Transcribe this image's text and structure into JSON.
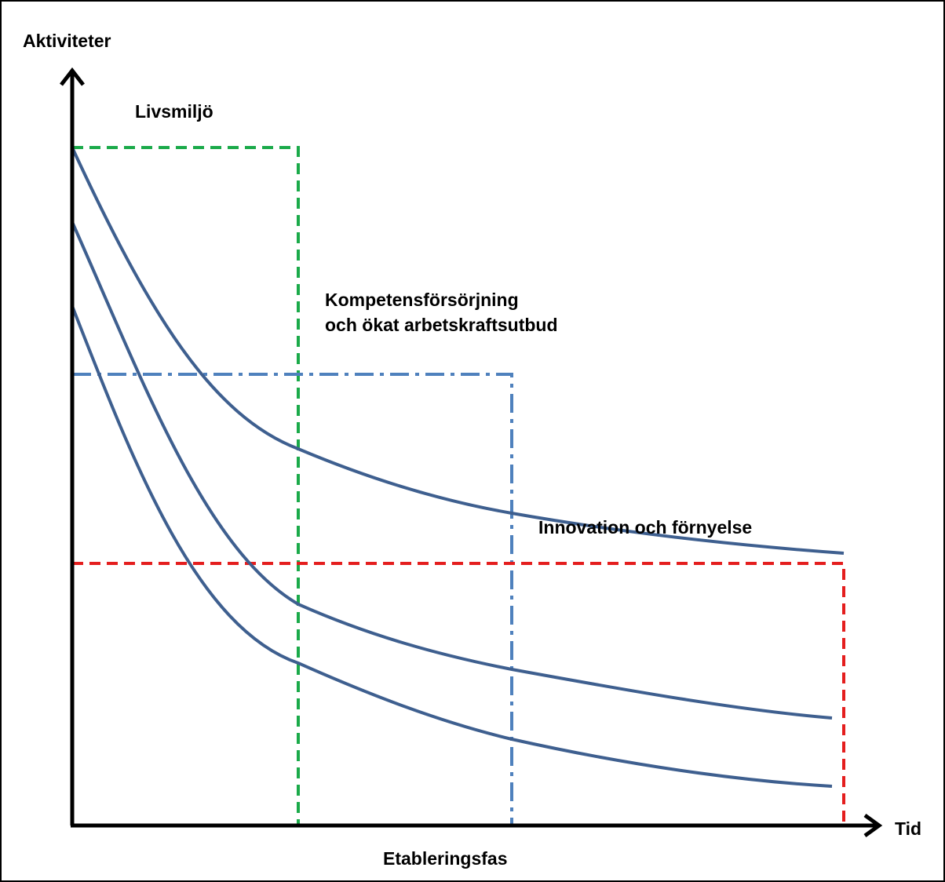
{
  "axes": {
    "y_label": "Aktiviteter",
    "x_label": "Tid"
  },
  "regions": {
    "livsmiljo": "Livsmiljö",
    "kompetens_line1": "Kompetensförsörjning",
    "kompetens_line2": "och ökat arbetskraftsutbud",
    "innovation": "Innovation och förnyelse",
    "etablering": "Etableringsfas"
  },
  "colors": {
    "axis": "#000000",
    "curve": "#3E5F8F",
    "livsmiljo_box": "#1BAA4A",
    "kompetens_box": "#4F81BD",
    "innovation_box": "#E41E1E",
    "frame": "#000000"
  },
  "icons": {
    "y_axis_arrow": "arrow-up-icon",
    "x_axis_arrow": "arrow-right-icon"
  }
}
